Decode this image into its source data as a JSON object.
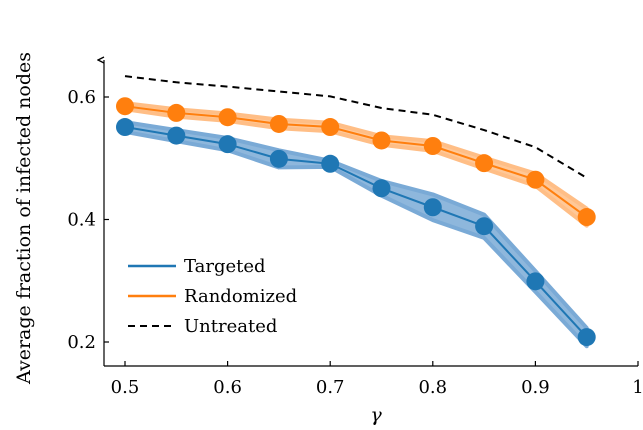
{
  "chart_data": {
    "type": "line",
    "title": "",
    "xlabel": "γ",
    "ylabel": "Average fraction of infected nodes",
    "xlim": [
      0.48,
      1.0
    ],
    "ylim": [
      0.17,
      0.66
    ],
    "xticks": [
      0.5,
      0.6,
      0.7,
      0.8,
      0.9,
      1.0
    ],
    "xtick_labels": [
      "0.5",
      "0.6",
      "0.7",
      "0.8",
      "0.9",
      "1"
    ],
    "yticks": [
      0.2,
      0.4,
      0.6
    ],
    "ytick_labels": [
      "0.2",
      "0.4",
      "0.6"
    ],
    "grid": false,
    "legend_position": "bottom-left",
    "x": [
      0.5,
      0.55,
      0.6,
      0.65,
      0.7,
      0.75,
      0.8,
      0.85,
      0.9,
      0.95
    ],
    "series": [
      {
        "name": "Targeted",
        "key": "targeted",
        "color": "#1f77b4",
        "band_color": "#7aaad6",
        "style": "solid-markers",
        "values": [
          0.551,
          0.537,
          0.523,
          0.499,
          0.491,
          0.451,
          0.42,
          0.389,
          0.299,
          0.208
        ],
        "band_lower": [
          0.543,
          0.528,
          0.513,
          0.485,
          0.486,
          0.439,
          0.399,
          0.37,
          0.282,
          0.193
        ],
        "band_upper": [
          0.559,
          0.546,
          0.533,
          0.513,
          0.496,
          0.463,
          0.441,
          0.408,
          0.316,
          0.223
        ]
      },
      {
        "name": "Randomized",
        "key": "randomized",
        "color": "#ff7f0e",
        "band_color": "#ffbe86",
        "style": "solid-markers",
        "values": [
          0.585,
          0.574,
          0.567,
          0.556,
          0.551,
          0.529,
          0.52,
          0.492,
          0.465,
          0.404
        ],
        "band_lower": [
          0.58,
          0.568,
          0.561,
          0.549,
          0.544,
          0.522,
          0.512,
          0.483,
          0.455,
          0.39
        ],
        "band_upper": [
          0.59,
          0.58,
          0.573,
          0.563,
          0.558,
          0.536,
          0.528,
          0.501,
          0.475,
          0.418
        ]
      },
      {
        "name": "Untreated",
        "key": "untreated",
        "color": "#000000",
        "style": "dashed",
        "values": [
          0.634,
          0.624,
          0.617,
          0.609,
          0.601,
          0.582,
          0.571,
          0.546,
          0.518,
          0.468
        ]
      }
    ]
  }
}
